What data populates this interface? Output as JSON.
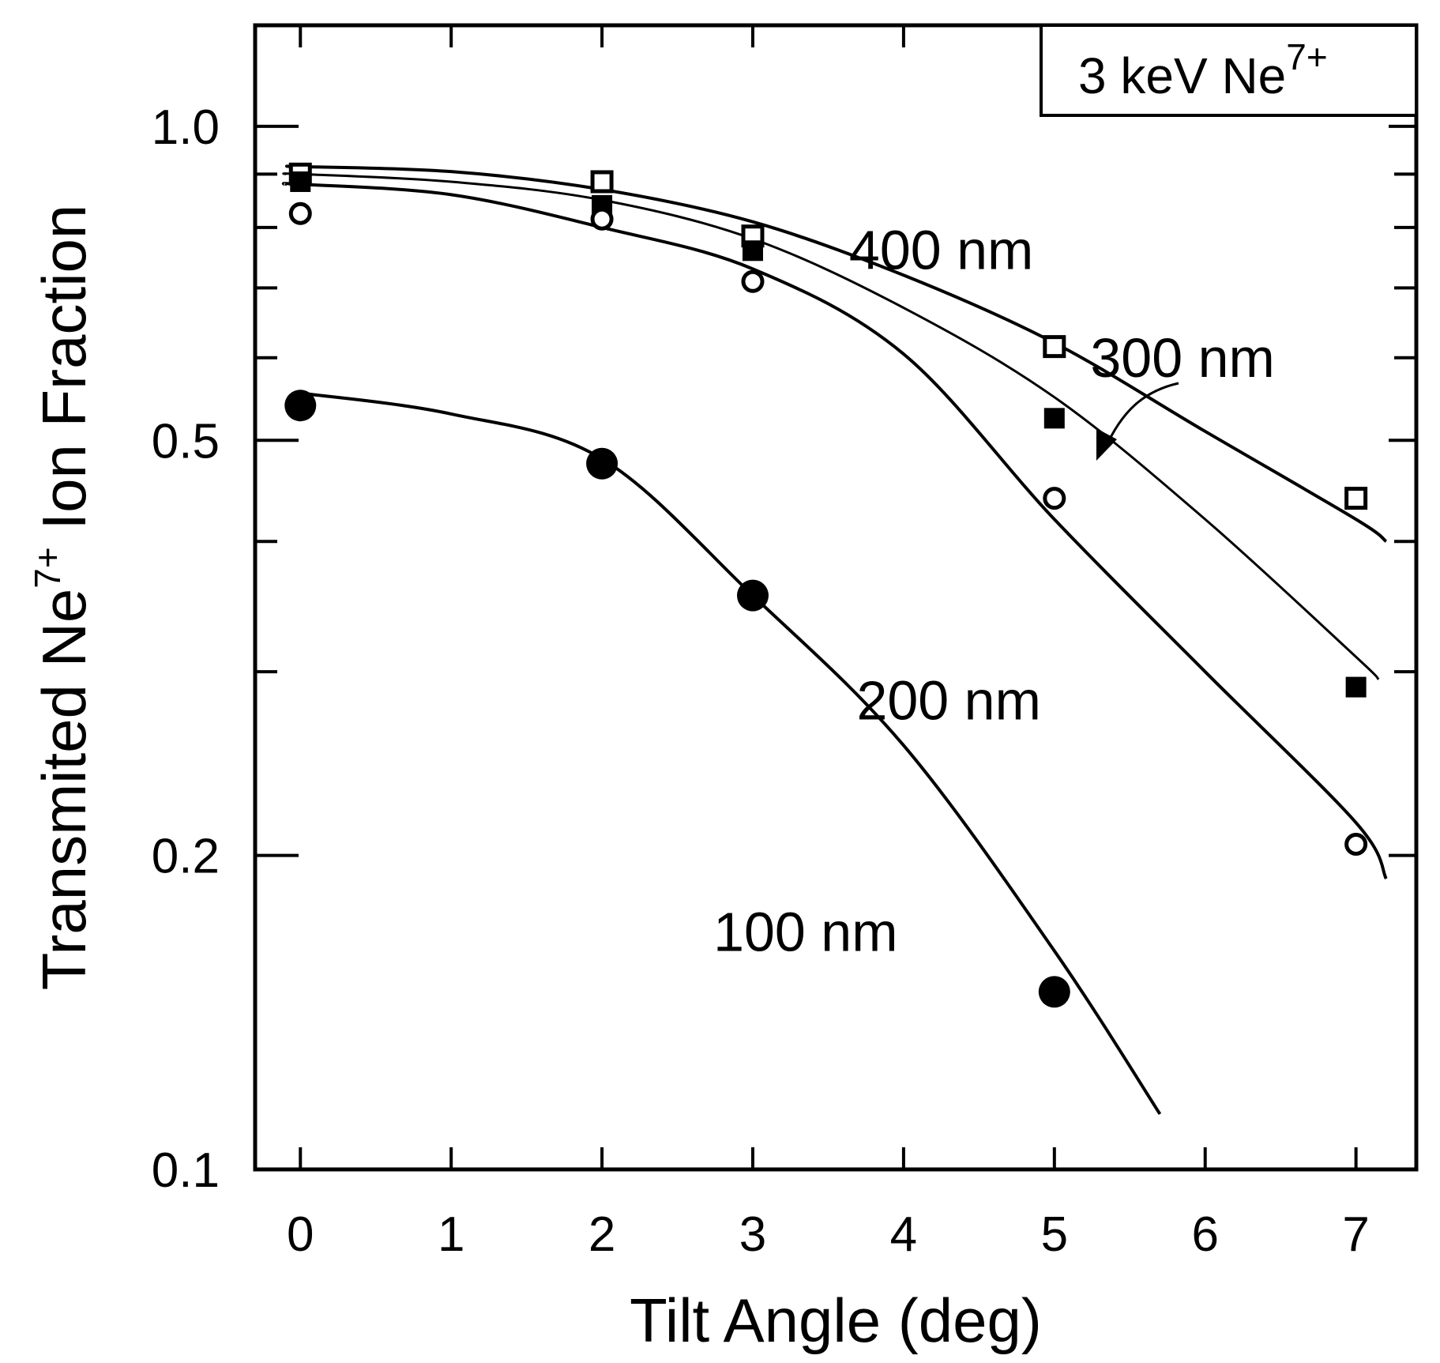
{
  "chart_data": {
    "type": "scatter",
    "title": "3 keV Ne7+",
    "title_parts": {
      "main": "3 keV Ne",
      "sup": "7+"
    },
    "xlabel": "Tilt Angle (deg)",
    "ylabel_parts": {
      "pre": "Transmited Ne",
      "sup": "7+",
      "post": " Ion Fraction"
    },
    "xlim": [
      -0.3,
      7.4
    ],
    "ylim": [
      0.1,
      1.25
    ],
    "yscale": "log",
    "xticks": [
      0,
      1,
      2,
      3,
      4,
      5,
      6,
      7
    ],
    "xtick_labels": [
      "0",
      "1",
      "2",
      "3",
      "4",
      "5",
      "6",
      "7"
    ],
    "yticks_labeled": [
      0.1,
      0.2,
      0.5,
      1.0
    ],
    "ytick_labels": [
      "0.1",
      "0.2",
      "0.5",
      "1.0"
    ],
    "yticks_minor": [
      0.3,
      0.4,
      0.6,
      0.7,
      0.8,
      0.9
    ],
    "series": [
      {
        "name": "400 nm",
        "marker": "open-square",
        "x": [
          0,
          2,
          3,
          5,
          7
        ],
        "y": [
          0.9,
          0.885,
          0.785,
          0.615,
          0.44
        ],
        "fit_x": [
          -0.05,
          0,
          1,
          2,
          3,
          4,
          5,
          6,
          7,
          7.2
        ],
        "fit_y": [
          0.915,
          0.915,
          0.905,
          0.87,
          0.81,
          0.72,
          0.62,
          0.51,
          0.42,
          0.4
        ]
      },
      {
        "name": "300 nm",
        "marker": "filled-square",
        "x": [
          0,
          2,
          3,
          5,
          7
        ],
        "y": [
          0.885,
          0.84,
          0.76,
          0.525,
          0.29
        ],
        "fit_x": [
          -0.1,
          0,
          1,
          2,
          3,
          4,
          5,
          6,
          7,
          7.15
        ],
        "fit_y": [
          0.9,
          0.9,
          0.885,
          0.85,
          0.78,
          0.67,
          0.55,
          0.42,
          0.31,
          0.295
        ]
      },
      {
        "name": "200 nm",
        "marker": "open-circle",
        "x": [
          0,
          2,
          3,
          5,
          7
        ],
        "y": [
          0.825,
          0.815,
          0.71,
          0.44,
          0.205
        ],
        "fit_x": [
          -0.1,
          0,
          1,
          2,
          3,
          4,
          5,
          6,
          7,
          7.2
        ],
        "fit_y": [
          0.88,
          0.88,
          0.86,
          0.8,
          0.73,
          0.605,
          0.42,
          0.3,
          0.215,
          0.19
        ]
      },
      {
        "name": "100 nm",
        "marker": "filled-circle",
        "x": [
          0,
          2,
          3,
          5
        ],
        "y": [
          0.54,
          0.475,
          0.355,
          0.148
        ],
        "fit_x": [
          0,
          1,
          2,
          3,
          4,
          5,
          5.7
        ],
        "fit_y": [
          0.555,
          0.53,
          0.48,
          0.355,
          0.255,
          0.162,
          0.113
        ]
      }
    ],
    "annotations": [
      {
        "text": "400 nm",
        "x": 4.25,
        "y": 0.73
      },
      {
        "text": "300 nm",
        "x": 5.85,
        "y": 0.575
      },
      {
        "text": "200 nm",
        "x": 4.3,
        "y": 0.27
      },
      {
        "text": "100 nm",
        "x": 3.35,
        "y": 0.162
      }
    ],
    "legend_placement": "top-right"
  }
}
